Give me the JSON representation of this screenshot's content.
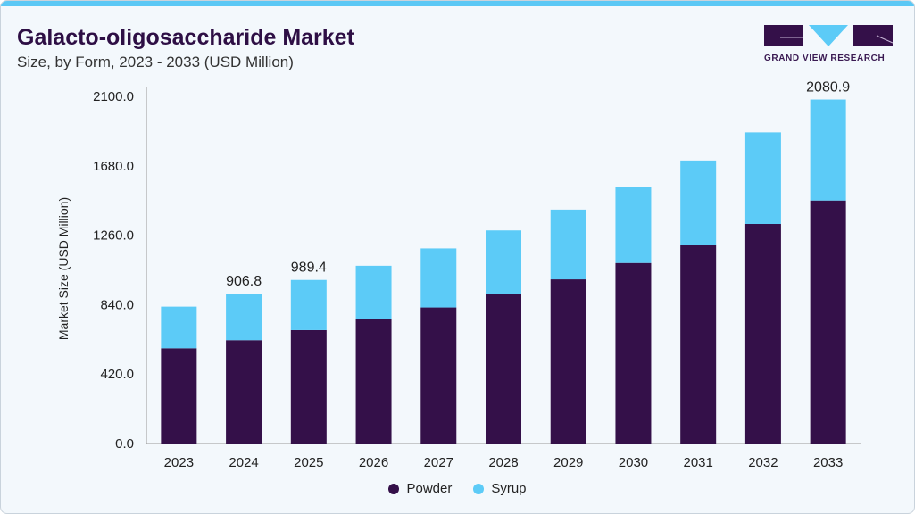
{
  "header": {
    "title": "Galacto-oligosaccharide Market",
    "subtitle": "Size, by Form, 2023 - 2033 (USD Million)"
  },
  "logo": {
    "text": "GRAND VIEW RESEARCH"
  },
  "colors": {
    "powder": "#341049",
    "syrup": "#5ccbf7"
  },
  "chart_data": {
    "type": "bar",
    "stacked": true,
    "title": "Galacto-oligosaccharide Market",
    "ylabel": "Market Size (USD Million)",
    "xlabel": "",
    "ylim": [
      0,
      2100
    ],
    "yticks": [
      "0.0",
      "420.0",
      "840.0",
      "1260.0",
      "1680.0",
      "2100.0"
    ],
    "categories": [
      "2023",
      "2024",
      "2025",
      "2026",
      "2027",
      "2028",
      "2029",
      "2030",
      "2031",
      "2032",
      "2033"
    ],
    "series": [
      {
        "name": "Powder",
        "values": [
          576,
          625,
          686,
          752,
          823,
          905,
          993,
          1092,
          1201,
          1328,
          1470
        ]
      },
      {
        "name": "Syrup",
        "values": [
          252,
          281.8,
          303.4,
          323,
          357,
          384,
          422,
          461,
          511,
          554,
          610.9
        ]
      }
    ],
    "data_labels": {
      "2024": "906.8",
      "2025": "989.4",
      "2033": "2080.9"
    },
    "legend": "bottom-center"
  }
}
